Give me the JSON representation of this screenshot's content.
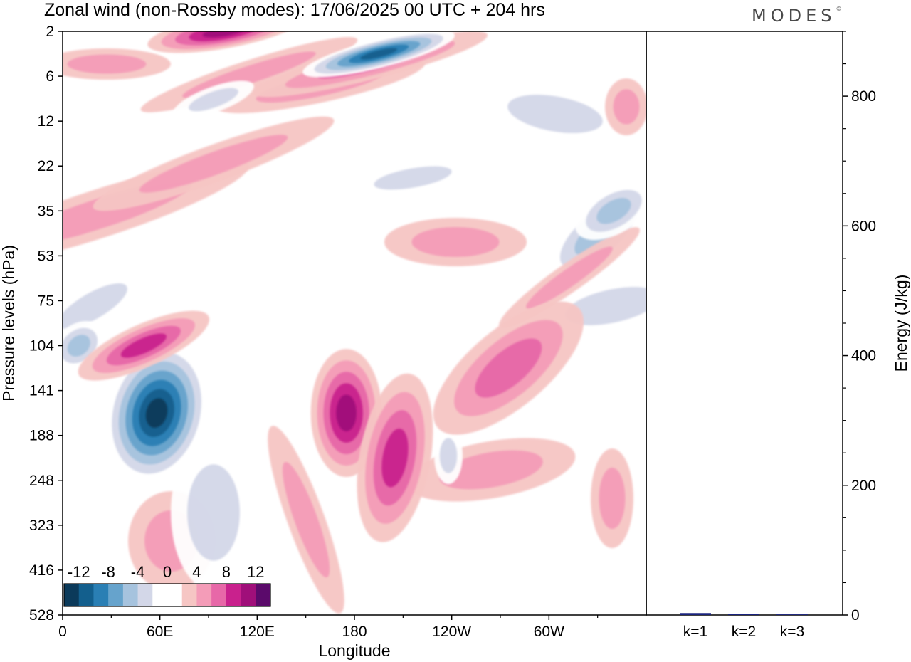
{
  "header": {
    "title": "Zonal wind (non-Rossby modes):  17/06/2025  00 UTC  + 204 hrs",
    "logo_text": "MODES",
    "logo_mark": "©"
  },
  "chart_data": [
    {
      "type": "heatmap",
      "description_field": "zonal wind",
      "xlabel": "Longitude",
      "ylabel": "Pressure levels (hPa)",
      "x_ticks": [
        "0",
        "60E",
        "120E",
        "180",
        "120W",
        "60W"
      ],
      "x_tick_values": [
        0,
        60,
        120,
        180,
        240,
        300
      ],
      "xlim": [
        0,
        360
      ],
      "y_ticks": [
        "2",
        "6",
        "12",
        "22",
        "35",
        "53",
        "75",
        "104",
        "141",
        "188",
        "248",
        "323",
        "416",
        "528"
      ],
      "y_scale": "ordinal-pressure-levels",
      "colorbar": {
        "labels": [
          "-12",
          "-8",
          "-4",
          "0",
          "4",
          "8",
          "12"
        ],
        "colors": [
          "#0b3a5a",
          "#135f8d",
          "#2a7fb4",
          "#66a3cc",
          "#a6c3de",
          "#d3d7e8",
          "#ffffff",
          "#ffffff",
          "#f6c6c4",
          "#f49cb8",
          "#e768a8",
          "#c9218d",
          "#a00f7a",
          "#5b0a6b"
        ],
        "placement": "lower-left"
      },
      "grid": false,
      "features": [
        {
          "lon": 58,
          "level": "141-188",
          "value": -14,
          "sign": "negative"
        },
        {
          "lon": 195,
          "level": "2-6",
          "value": -12,
          "sign": "negative"
        },
        {
          "lon": 10,
          "level": "104",
          "value": -6,
          "sign": "negative"
        },
        {
          "lon": 50,
          "level": "104",
          "value": 8,
          "sign": "positive"
        },
        {
          "lon": 100,
          "level": "2",
          "value": 10,
          "sign": "positive"
        },
        {
          "lon": 175,
          "level": "141-188",
          "value": 10,
          "sign": "positive"
        },
        {
          "lon": 205,
          "level": "188-248",
          "value": 8,
          "sign": "positive"
        },
        {
          "lon": 275,
          "level": "104-141",
          "value": 6,
          "sign": "positive"
        },
        {
          "lon": 340,
          "level": "35",
          "value": -5,
          "sign": "negative"
        }
      ]
    },
    {
      "type": "bar",
      "categories": [
        "k=1",
        "k=2",
        "k=3"
      ],
      "values": [
        3,
        1.5,
        1
      ],
      "ylabel": "Energy (J/kg)",
      "y_ticks": [
        "0",
        "200",
        "400",
        "600",
        "800"
      ],
      "ylim": [
        0,
        900
      ],
      "bar_color": "#1a237e"
    }
  ]
}
